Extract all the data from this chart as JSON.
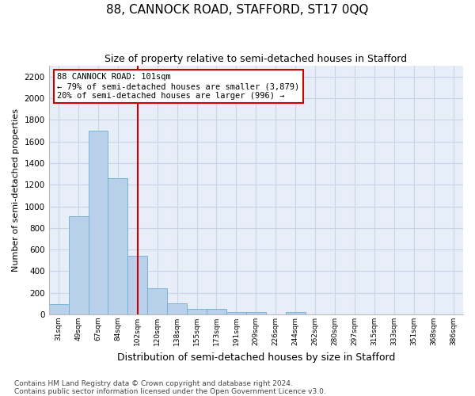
{
  "title": "88, CANNOCK ROAD, STAFFORD, ST17 0QQ",
  "subtitle": "Size of property relative to semi-detached houses in Stafford",
  "xlabel": "Distribution of semi-detached houses by size in Stafford",
  "ylabel": "Number of semi-detached properties",
  "categories": [
    "31sqm",
    "49sqm",
    "67sqm",
    "84sqm",
    "102sqm",
    "120sqm",
    "138sqm",
    "155sqm",
    "173sqm",
    "191sqm",
    "209sqm",
    "226sqm",
    "244sqm",
    "262sqm",
    "280sqm",
    "297sqm",
    "315sqm",
    "333sqm",
    "351sqm",
    "368sqm",
    "386sqm"
  ],
  "values": [
    95,
    910,
    1700,
    1260,
    540,
    240,
    100,
    50,
    50,
    25,
    25,
    0,
    20,
    0,
    0,
    0,
    0,
    0,
    0,
    0,
    0
  ],
  "bar_color": "#b8d0ea",
  "bar_edge_color": "#6aaed6",
  "grid_color": "#c8d4e8",
  "background_color": "#e8eef8",
  "annotation_box_text": "88 CANNOCK ROAD: 101sqm\n← 79% of semi-detached houses are smaller (3,879)\n20% of semi-detached houses are larger (996) →",
  "annotation_box_color": "#ffffff",
  "annotation_box_edge_color": "#cc0000",
  "property_line_x": 4.0,
  "property_line_color": "#cc0000",
  "ylim": [
    0,
    2300
  ],
  "yticks": [
    0,
    200,
    400,
    600,
    800,
    1000,
    1200,
    1400,
    1600,
    1800,
    2000,
    2200
  ],
  "footer": "Contains HM Land Registry data © Crown copyright and database right 2024.\nContains public sector information licensed under the Open Government Licence v3.0.",
  "title_fontsize": 11,
  "subtitle_fontsize": 9,
  "xlabel_fontsize": 9,
  "ylabel_fontsize": 8,
  "footer_fontsize": 6.5,
  "annot_fontsize": 7.5
}
